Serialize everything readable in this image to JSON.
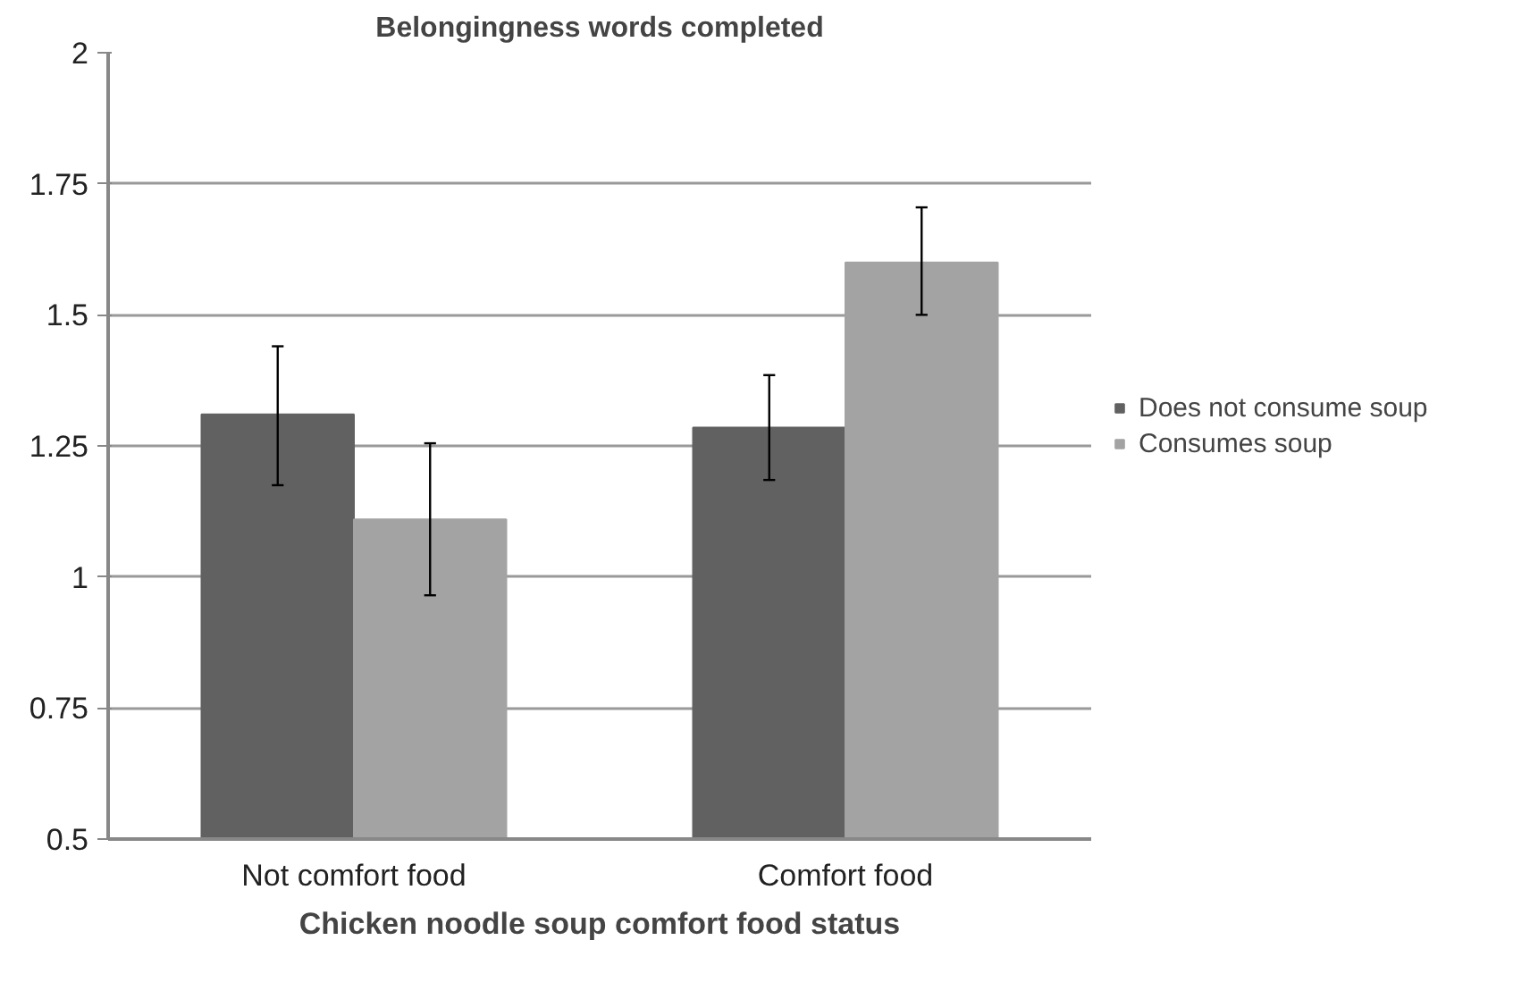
{
  "chart_data": {
    "type": "bar",
    "title": "Belongingness words completed",
    "xlabel": "Chicken noodle soup comfort food status",
    "categories": [
      "Not comfort food",
      "Comfort food"
    ],
    "series": [
      {
        "name": "Does not consume soup",
        "color": "#616161",
        "values": [
          1.31,
          1.285
        ],
        "errors": [
          [
            1.175,
            1.44
          ],
          [
            1.185,
            1.385
          ]
        ]
      },
      {
        "name": "Consumes soup",
        "color": "#a3a3a3",
        "values": [
          1.11,
          1.6
        ],
        "errors": [
          [
            0.965,
            1.255
          ],
          [
            1.5,
            1.705
          ]
        ]
      }
    ],
    "ylim": [
      0.5,
      2
    ],
    "yticks": [
      0.5,
      0.75,
      1,
      1.25,
      1.5,
      1.75,
      2
    ],
    "grid": "y",
    "legend": "right"
  }
}
